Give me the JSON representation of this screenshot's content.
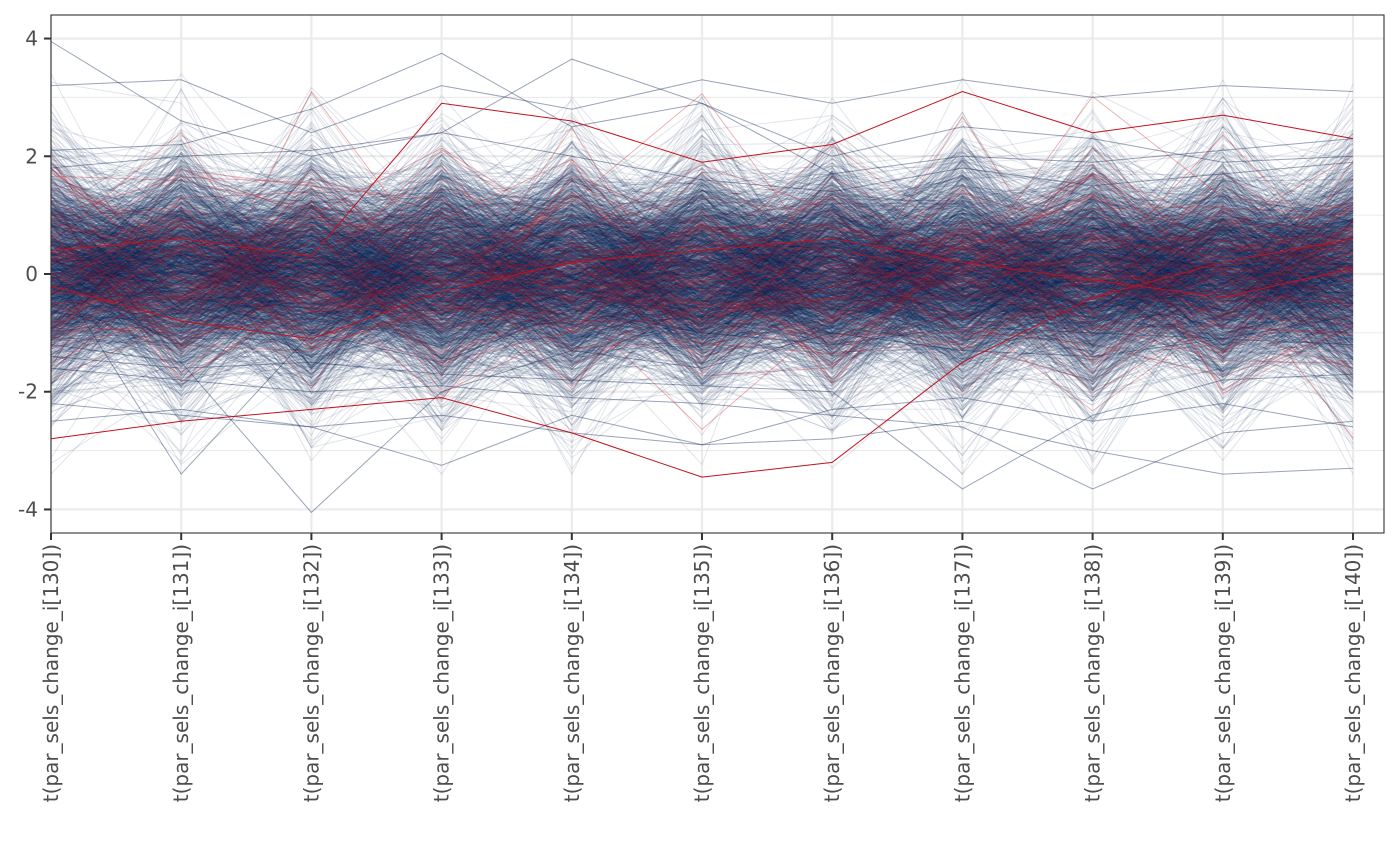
{
  "chart_data": {
    "type": "line",
    "subtype": "parallel-coordinates",
    "title": "",
    "xlabel": "",
    "ylabel": "",
    "categories": [
      "t(par_sels_change_i[130])",
      "t(par_sels_change_i[131])",
      "t(par_sels_change_i[132])",
      "t(par_sels_change_i[133])",
      "t(par_sels_change_i[134])",
      "t(par_sels_change_i[135])",
      "t(par_sels_change_i[136])",
      "t(par_sels_change_i[137])",
      "t(par_sels_change_i[138])",
      "t(par_sels_change_i[139])",
      "t(par_sels_change_i[140])"
    ],
    "ylim": [
      -4.4,
      4.4
    ],
    "yticks": [
      -4,
      -2,
      0,
      2,
      4
    ],
    "ytick_labels": [
      "-4",
      "-2",
      "0",
      "2",
      "4"
    ],
    "grid": true,
    "legend": "none",
    "series": [
      {
        "group": "non-divergent (dark blue)",
        "color": "#0b2556",
        "approx_line_count": 1900,
        "distribution": "standard normal",
        "highlighted_lines": [
          [
            3.95,
            2.6,
            2.0,
            2.4,
            2.0,
            1.6,
            1.4,
            1.8,
            1.5,
            1.7,
            1.9
          ],
          [
            3.2,
            3.3,
            2.4,
            3.2,
            2.8,
            3.3,
            2.9,
            3.3,
            3.0,
            3.2,
            3.1
          ],
          [
            0.1,
            -3.4,
            -1.0,
            -1.5,
            -0.6,
            -1.0,
            -1.2,
            -0.9,
            -1.0,
            -1.1,
            -0.7
          ],
          [
            -1.2,
            -1.5,
            -4.05,
            -2.0,
            -1.3,
            -1.6,
            -1.0,
            -1.3,
            -1.4,
            -1.1,
            -1.2
          ],
          [
            2.1,
            2.2,
            2.8,
            3.75,
            2.5,
            2.9,
            1.7,
            2.0,
            1.9,
            2.1,
            2.3
          ],
          [
            1.8,
            2.0,
            2.1,
            2.4,
            3.65,
            2.9,
            2.0,
            2.5,
            2.3,
            1.9,
            2.0
          ],
          [
            -2.2,
            -2.4,
            -2.6,
            -3.25,
            -2.4,
            -2.9,
            -2.3,
            -2.1,
            -2.5,
            -2.2,
            -2.6
          ],
          [
            -1.4,
            -1.6,
            -1.5,
            -1.7,
            -1.8,
            -1.9,
            -2.0,
            -3.65,
            -2.4,
            -1.8,
            -1.7
          ],
          [
            -1.6,
            -1.8,
            -2.0,
            -1.9,
            -2.1,
            -2.2,
            -2.4,
            -2.6,
            -3.65,
            -2.7,
            -2.5
          ],
          [
            -2.5,
            -2.3,
            -2.6,
            -2.4,
            -2.7,
            -2.9,
            -2.8,
            -2.5,
            -3.0,
            -3.4,
            -3.3
          ]
        ]
      },
      {
        "group": "divergent (red)",
        "color": "#c1121f",
        "approx_line_count": 70,
        "distribution": "standard normal",
        "highlighted_lines": [
          [
            -2.8,
            -2.5,
            -2.3,
            -2.1,
            -2.7,
            -3.45,
            -3.2,
            -1.5,
            -0.4,
            0.2,
            0.6
          ],
          [
            0.4,
            0.6,
            0.3,
            2.9,
            2.6,
            1.9,
            2.2,
            3.1,
            2.4,
            2.7,
            2.3
          ],
          [
            -0.2,
            -0.8,
            -1.1,
            -0.3,
            0.2,
            0.4,
            0.6,
            0.2,
            -0.1,
            -0.4,
            0.1
          ]
        ]
      }
    ]
  }
}
